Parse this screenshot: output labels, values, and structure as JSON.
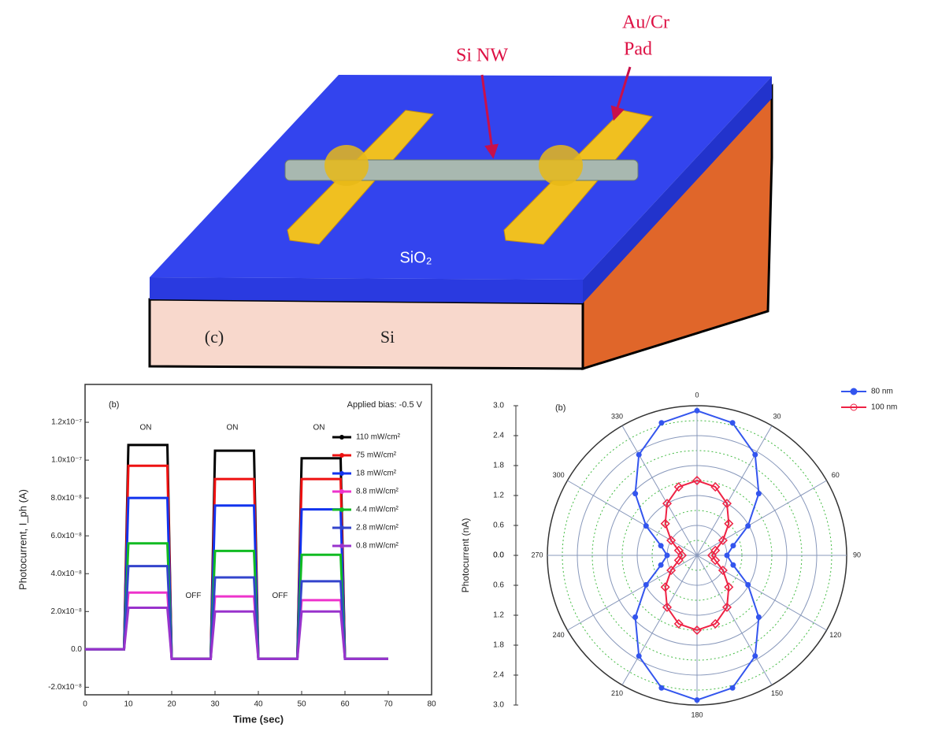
{
  "diagram": {
    "nanowire_label": "Si NW",
    "pad_label": [
      "Au/Cr",
      "Pad"
    ],
    "oxide_label": "SiO₂",
    "panel_label": "(c)",
    "substrate_label": "Si"
  },
  "chart_data": [
    {
      "type": "line",
      "panel_label": "(b)",
      "annotation": "Applied bias: -0.5 V",
      "on_labels": [
        "ON",
        "ON",
        "ON"
      ],
      "off_labels": [
        "OFF",
        "OFF"
      ],
      "xlabel": "Time (sec)",
      "ylabel": "Photocurrent, I_ph (A)",
      "xlim": [
        0,
        80
      ],
      "xticks": [
        0,
        10,
        20,
        30,
        40,
        50,
        60,
        70,
        80
      ],
      "ylim": [
        -2.4e-08,
        1.4e-07
      ],
      "yticks": [
        {
          "value": -2e-08,
          "label": "-2.0x10⁻⁸"
        },
        {
          "value": 0,
          "label": "0.0"
        },
        {
          "value": 2e-08,
          "label": "2.0x10⁻⁸"
        },
        {
          "value": 4e-08,
          "label": "4.0x10⁻⁸"
        },
        {
          "value": 6e-08,
          "label": "6.0x10⁻⁸"
        },
        {
          "value": 8e-08,
          "label": "8.0x10⁻⁸"
        },
        {
          "value": 1e-07,
          "label": "1.0x10⁻⁷"
        },
        {
          "value": 1.2e-07,
          "label": "1.2x10⁻⁷"
        }
      ],
      "x": [
        0,
        5,
        9,
        10,
        14,
        19,
        20,
        25,
        29,
        30,
        34,
        39,
        40,
        45,
        49,
        50,
        54,
        59,
        60,
        65,
        70
      ],
      "series": [
        {
          "name": "110 mW/cm²",
          "color": "#000000",
          "values": [
            0,
            0,
            0,
            1.08e-07,
            1.08e-07,
            1.08e-07,
            -5e-09,
            -5e-09,
            -5e-09,
            1.05e-07,
            1.05e-07,
            1.05e-07,
            -5e-09,
            -5e-09,
            -5e-09,
            1.01e-07,
            1.01e-07,
            1.01e-07,
            -5e-09,
            -5e-09,
            -5e-09
          ]
        },
        {
          "name": "75 mW/cm²",
          "color": "#ee1111",
          "values": [
            0,
            0,
            0,
            9.7e-08,
            9.7e-08,
            9.7e-08,
            -5e-09,
            -5e-09,
            -5e-09,
            9e-08,
            9e-08,
            9e-08,
            -5e-09,
            -5e-09,
            -5e-09,
            9e-08,
            9e-08,
            9e-08,
            -5e-09,
            -5e-09,
            -5e-09
          ]
        },
        {
          "name": "18 mW/cm²",
          "color": "#1133ee",
          "values": [
            0,
            0,
            0,
            8e-08,
            8e-08,
            8e-08,
            -5e-09,
            -5e-09,
            -5e-09,
            7.6e-08,
            7.6e-08,
            7.6e-08,
            -5e-09,
            -5e-09,
            -5e-09,
            7.4e-08,
            7.4e-08,
            7.4e-08,
            -5e-09,
            -5e-09,
            -5e-09
          ]
        },
        {
          "name": "8.8 mW/cm²",
          "color": "#ee33cc",
          "values": [
            0,
            0,
            0,
            3e-08,
            3e-08,
            3e-08,
            -5e-09,
            -5e-09,
            -5e-09,
            2.8e-08,
            2.8e-08,
            2.8e-08,
            -5e-09,
            -5e-09,
            -5e-09,
            2.6e-08,
            2.6e-08,
            2.6e-08,
            -5e-09,
            -5e-09,
            -5e-09
          ]
        },
        {
          "name": "4.4 mW/cm²",
          "color": "#11bb22",
          "values": [
            0,
            0,
            0,
            5.6e-08,
            5.6e-08,
            5.6e-08,
            -5e-09,
            -5e-09,
            -5e-09,
            5.2e-08,
            5.2e-08,
            5.2e-08,
            -5e-09,
            -5e-09,
            -5e-09,
            5e-08,
            5e-08,
            5e-08,
            -5e-09,
            -5e-09,
            -5e-09
          ]
        },
        {
          "name": "2.8 mW/cm²",
          "color": "#3344cc",
          "values": [
            0,
            0,
            0,
            4.4e-08,
            4.4e-08,
            4.4e-08,
            -5e-09,
            -5e-09,
            -5e-09,
            3.8e-08,
            3.8e-08,
            3.8e-08,
            -5e-09,
            -5e-09,
            -5e-09,
            3.6e-08,
            3.6e-08,
            3.6e-08,
            -5e-09,
            -5e-09,
            -5e-09
          ]
        },
        {
          "name": "0.8 mW/cm²",
          "color": "#9933cc",
          "values": [
            0,
            0,
            0,
            2.2e-08,
            2.2e-08,
            2.2e-08,
            -5e-09,
            -5e-09,
            -5e-09,
            2e-08,
            2e-08,
            2e-08,
            -5e-09,
            -5e-09,
            -5e-09,
            2e-08,
            2e-08,
            2e-08,
            -5e-09,
            -5e-09,
            -5e-09
          ]
        }
      ]
    },
    {
      "type": "polar",
      "panel_label": "(b)",
      "ylabel": "Photocurrent (nA)",
      "rlim": [
        0,
        3
      ],
      "rticks": [
        {
          "value": 0,
          "label": "0.0"
        },
        0.6,
        1.2,
        1.8,
        2.4,
        {
          "value": 3,
          "label": "3.0"
        }
      ],
      "thetaticks": [
        0,
        30,
        60,
        90,
        120,
        150,
        180,
        210,
        240,
        270,
        300,
        330
      ],
      "theta": [
        0,
        15,
        30,
        45,
        60,
        75,
        90,
        105,
        120,
        135,
        150,
        165,
        180,
        195,
        210,
        225,
        240,
        255,
        270,
        285,
        300,
        315,
        330,
        345
      ],
      "series": [
        {
          "name": "80 nm",
          "color": "#3355ee",
          "values": [
            2.9,
            2.75,
            2.33,
            1.75,
            1.18,
            0.75,
            0.6,
            0.75,
            1.18,
            1.75,
            2.33,
            2.75,
            2.9,
            2.75,
            2.33,
            1.75,
            1.18,
            0.75,
            0.6,
            0.75,
            1.18,
            1.75,
            2.33,
            2.75
          ]
        },
        {
          "name": "100 nm",
          "color": "#ee2244",
          "values": [
            1.5,
            1.42,
            1.2,
            0.9,
            0.6,
            0.38,
            0.3,
            0.38,
            0.6,
            0.9,
            1.2,
            1.42,
            1.5,
            1.42,
            1.2,
            0.9,
            0.6,
            0.38,
            0.3,
            0.38,
            0.6,
            0.9,
            1.2,
            1.42
          ]
        }
      ]
    }
  ]
}
